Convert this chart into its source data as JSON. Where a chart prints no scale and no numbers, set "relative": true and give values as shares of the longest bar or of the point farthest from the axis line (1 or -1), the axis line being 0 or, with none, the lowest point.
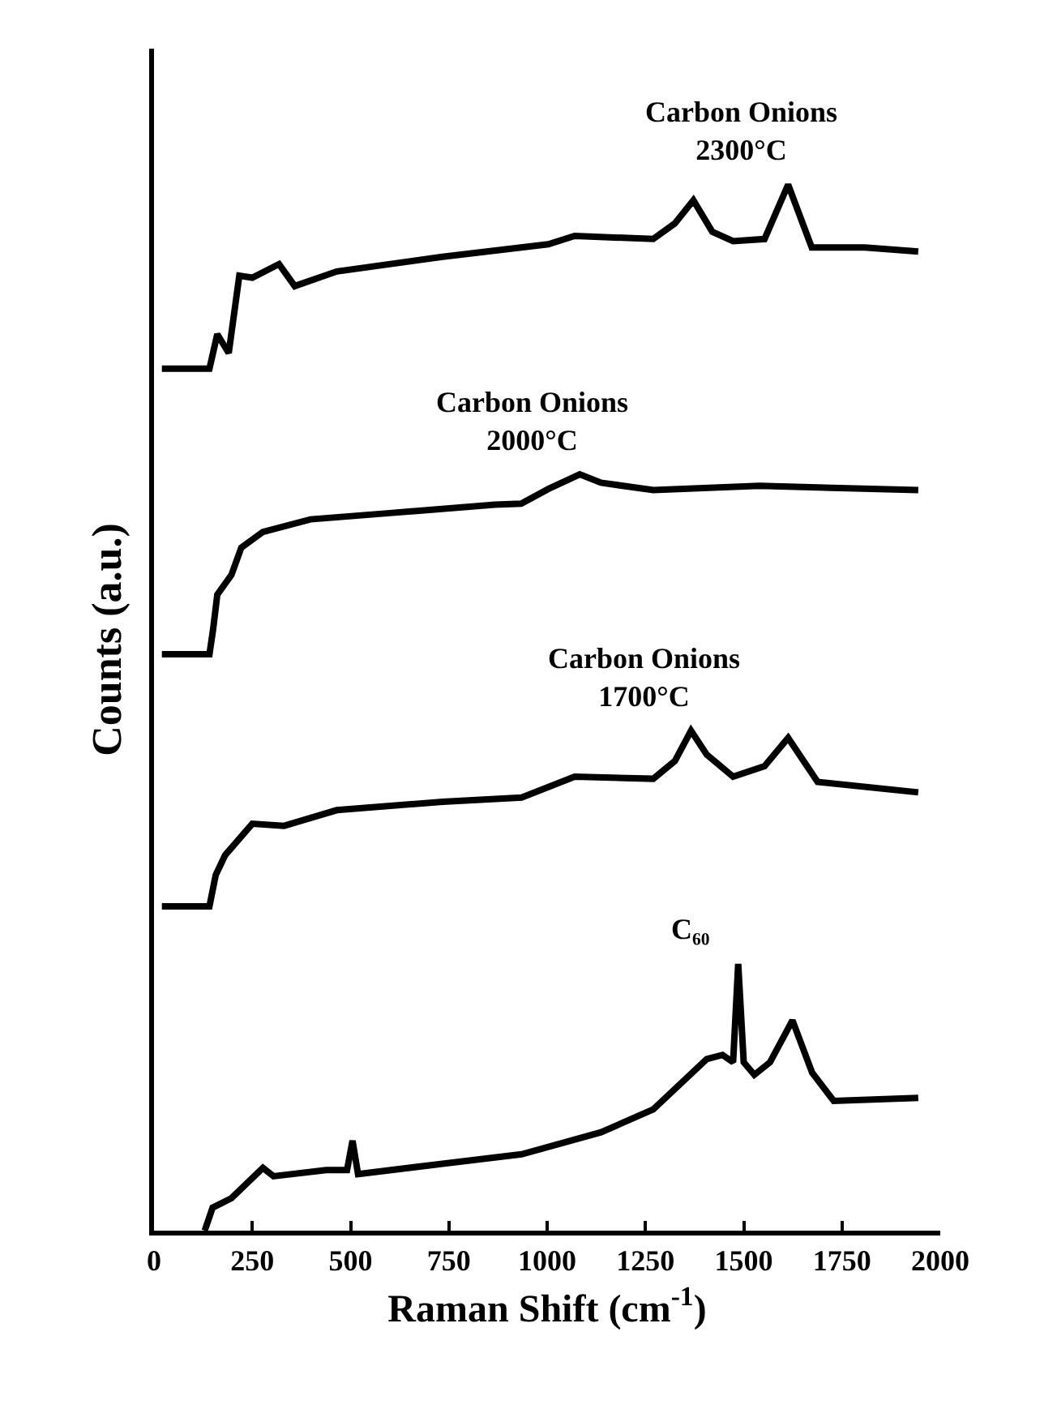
{
  "chart_data": {
    "type": "line",
    "xlabel": "Raman Shift (cm$^{-1}$)",
    "ylabel": "Counts (a.u.)",
    "relative": true,
    "tick_labels": "x",
    "grid": false,
    "legend": false,
    "marker": "none",
    "line_style": "solid",
    "xlim": [
      0,
      2000
    ],
    "xticks": [
      0,
      250,
      500,
      750,
      1000,
      1250,
      1500,
      1750,
      2000
    ],
    "series": [
      {
        "name": "Carbon Onions 2300°C",
        "color": "#000000",
        "x": [
          20,
          141,
          161,
          190,
          217,
          250,
          318,
          358,
          465,
          734,
          1003,
          1070,
          1270,
          1325,
          1372,
          1420,
          1473,
          1553,
          1613,
          1673,
          1808,
          1944
        ],
        "values": [
          0.824,
          0.824,
          0.857,
          0.839,
          0.913,
          0.911,
          0.924,
          0.903,
          0.917,
          0.931,
          0.943,
          0.951,
          0.948,
          0.963,
          0.985,
          0.955,
          0.946,
          0.948,
          1,
          0.94,
          0.94,
          0.936
        ]
      },
      {
        "name": "Carbon Onions 2000°C",
        "color": "#000000",
        "x": [
          20,
          141,
          150,
          161,
          197,
          222,
          277,
          398,
          600,
          867,
          934,
          1003,
          1083,
          1137,
          1270,
          1540,
          1944
        ],
        "values": [
          0.551,
          0.551,
          0.574,
          0.608,
          0.627,
          0.653,
          0.668,
          0.68,
          0.686,
          0.694,
          0.695,
          0.709,
          0.723,
          0.715,
          0.708,
          0.712,
          0.708
        ]
      },
      {
        "name": "Carbon Onions 1700°C",
        "color": "#000000",
        "x": [
          20,
          141,
          157,
          181,
          250,
          331,
          465,
          734,
          935,
          1070,
          1270,
          1325,
          1366,
          1406,
          1473,
          1553,
          1613,
          1688,
          1944
        ],
        "values": [
          0.31,
          0.31,
          0.34,
          0.359,
          0.389,
          0.387,
          0.402,
          0.41,
          0.414,
          0.434,
          0.432,
          0.449,
          0.478,
          0.455,
          0.434,
          0.444,
          0.471,
          0.429,
          0.419
        ]
      },
      {
        "name": "C₆₀",
        "color": "#000000",
        "x": [
          129,
          149,
          197,
          277,
          304,
          438,
          491,
          505,
          519,
          734,
          935,
          1137,
          1270,
          1406,
          1446,
          1473,
          1486,
          1500,
          1527,
          1567,
          1624,
          1674,
          1729,
          1944
        ],
        "values": [
          0,
          0.022,
          0.031,
          0.06,
          0.052,
          0.058,
          0.058,
          0.086,
          0.054,
          0.064,
          0.073,
          0.094,
          0.116,
          0.164,
          0.168,
          0.161,
          0.255,
          0.161,
          0.149,
          0.161,
          0.201,
          0.151,
          0.124,
          0.127
        ]
      }
    ]
  }
}
